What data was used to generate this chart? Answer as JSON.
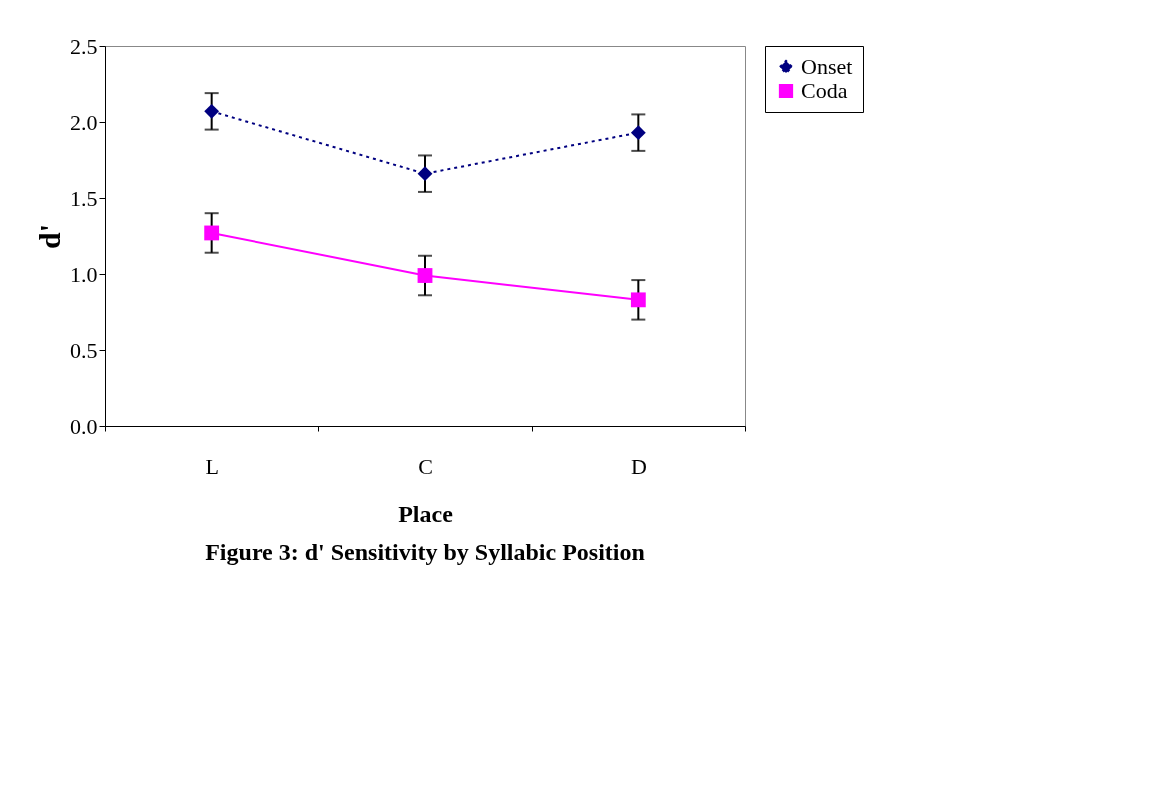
{
  "chart_data": {
    "type": "line",
    "title": "Figure 3: d' Sensitivity by Syllabic Position",
    "xlabel": "Place",
    "ylabel": "d'",
    "categories": [
      "L",
      "C",
      "D"
    ],
    "series": [
      {
        "name": "Onset",
        "color": "#000080",
        "values": [
          2.07,
          1.66,
          1.93
        ],
        "errors": [
          0.12,
          0.12,
          0.12
        ],
        "marker": "diamond",
        "line_style": "dotted"
      },
      {
        "name": "Coda",
        "color": "#ff00ff",
        "values": [
          1.27,
          0.99,
          0.83
        ],
        "errors": [
          0.13,
          0.13,
          0.13
        ],
        "marker": "square",
        "line_style": "solid"
      }
    ],
    "ylim": [
      0,
      2.5
    ],
    "yticks": [
      {
        "value": 0,
        "label": "0.0"
      },
      {
        "value": 0.5,
        "label": "0.5"
      },
      {
        "value": 1,
        "label": "1.0"
      },
      {
        "value": 1.5,
        "label": "1.5"
      },
      {
        "value": 2,
        "label": "2.0"
      },
      {
        "value": 2.5,
        "label": "2.5"
      }
    ],
    "grid": false,
    "legend": "right"
  }
}
